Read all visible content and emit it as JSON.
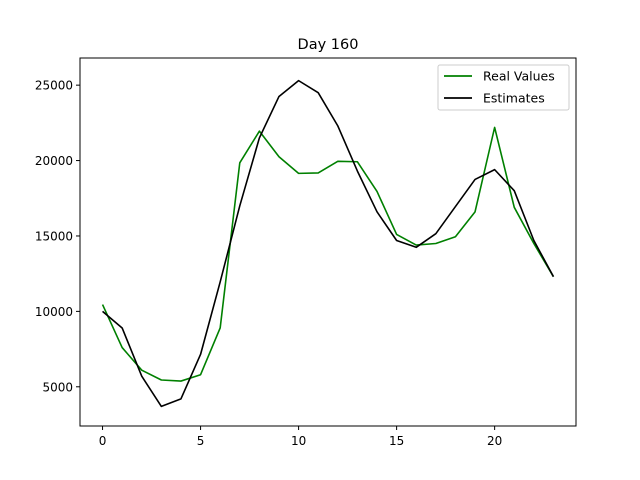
{
  "chart_data": {
    "type": "line",
    "title": "Day 160",
    "xlabel": "",
    "ylabel": "",
    "xlim": [
      -1.15,
      24.15
    ],
    "ylim": [
      2400,
      26800
    ],
    "xticks": [
      0,
      5,
      10,
      15,
      20
    ],
    "yticks": [
      5000,
      10000,
      15000,
      20000,
      25000
    ],
    "grid": false,
    "legend_position": "top-right",
    "x": [
      0,
      1,
      2,
      3,
      4,
      5,
      6,
      7,
      8,
      9,
      10,
      11,
      12,
      13,
      14,
      15,
      16,
      17,
      18,
      19,
      20,
      21,
      22,
      23
    ],
    "series": [
      {
        "name": "Real Values",
        "color": "#008000",
        "values": [
          10450,
          7600,
          6100,
          5450,
          5380,
          5800,
          8900,
          19850,
          21950,
          20250,
          19150,
          19180,
          19950,
          19920,
          17950,
          15100,
          14400,
          14500,
          14950,
          16600,
          22200,
          16900,
          14500,
          12300
        ]
      },
      {
        "name": "Estimates",
        "color": "#000000",
        "values": [
          10000,
          8900,
          5700,
          3700,
          4200,
          7150,
          11950,
          17000,
          21500,
          24250,
          25300,
          24500,
          22300,
          19300,
          16600,
          14700,
          14250,
          15150,
          16950,
          18750,
          19400,
          18000,
          14700,
          12300
        ]
      }
    ]
  }
}
